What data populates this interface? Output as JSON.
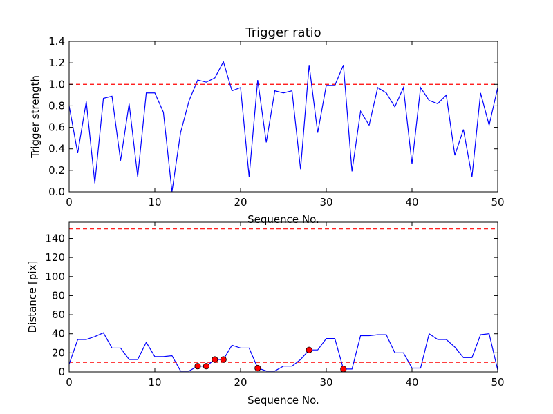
{
  "chart_data": [
    {
      "type": "line",
      "title": "Trigger ratio",
      "xlabel": "Sequence No.",
      "ylabel": "Trigger strength",
      "xlim": [
        0,
        50
      ],
      "ylim": [
        0,
        1.4
      ],
      "xticks": [
        0,
        10,
        20,
        30,
        40,
        50
      ],
      "yticks": [
        0.0,
        0.2,
        0.4,
        0.6,
        0.8,
        1.0,
        1.2,
        1.4
      ],
      "ytick_labels": [
        "0.0",
        "0.2",
        "0.4",
        "0.6",
        "0.8",
        "1.0",
        "1.2",
        "1.4"
      ],
      "grid": false,
      "series": [
        {
          "color": "#0000ff",
          "x": [
            0,
            1,
            2,
            3,
            4,
            5,
            6,
            7,
            8,
            9,
            10,
            11,
            12,
            13,
            14,
            15,
            16,
            17,
            18,
            19,
            20,
            21,
            22,
            23,
            24,
            25,
            26,
            27,
            28,
            29,
            30,
            31,
            32,
            33,
            34,
            35,
            36,
            37,
            38,
            39,
            40,
            41,
            42,
            43,
            44,
            45,
            46,
            47,
            48,
            49,
            50
          ],
          "y": [
            0.8,
            0.36,
            0.84,
            0.08,
            0.87,
            0.89,
            0.29,
            0.82,
            0.14,
            0.92,
            0.92,
            0.74,
            0.0,
            0.55,
            0.85,
            1.04,
            1.02,
            1.06,
            1.21,
            0.94,
            0.97,
            0.14,
            1.04,
            0.46,
            0.94,
            0.92,
            0.94,
            0.21,
            1.18,
            0.55,
            0.99,
            0.99,
            1.18,
            0.19,
            0.75,
            0.62,
            0.97,
            0.92,
            0.79,
            0.97,
            0.26,
            0.97,
            0.85,
            0.82,
            0.9,
            0.34,
            0.58,
            0.14,
            0.92,
            0.62,
            0.97
          ]
        }
      ],
      "hlines": [
        {
          "y": 1.0,
          "color": "#ff0000",
          "style": "dashed"
        }
      ]
    },
    {
      "type": "line",
      "xlabel": "Sequence No.",
      "ylabel": "Distance [pix]",
      "xlim": [
        0,
        50
      ],
      "ylim": [
        0,
        157
      ],
      "xticks": [
        0,
        10,
        20,
        30,
        40,
        50
      ],
      "yticks": [
        0,
        20,
        40,
        60,
        80,
        100,
        120,
        140
      ],
      "ytick_labels": [
        "0",
        "20",
        "40",
        "60",
        "80",
        "100",
        "120",
        "140"
      ],
      "grid": false,
      "series": [
        {
          "color": "#0000ff",
          "x": [
            0,
            1,
            2,
            3,
            4,
            5,
            6,
            7,
            8,
            9,
            10,
            11,
            12,
            13,
            14,
            15,
            16,
            17,
            18,
            19,
            20,
            21,
            22,
            23,
            24,
            25,
            26,
            27,
            28,
            29,
            30,
            31,
            32,
            33,
            34,
            35,
            36,
            37,
            38,
            39,
            40,
            41,
            42,
            43,
            44,
            45,
            46,
            47,
            48,
            49,
            50
          ],
          "y": [
            8,
            34,
            34,
            37,
            41,
            25,
            25,
            13,
            13,
            31,
            16,
            16,
            17,
            1,
            1,
            6,
            6,
            13,
            13,
            28,
            25,
            25,
            4,
            1,
            1,
            6,
            6,
            13,
            23,
            23,
            35,
            35,
            3,
            3,
            38,
            38,
            39,
            39,
            20,
            20,
            4,
            4,
            40,
            34,
            34,
            26,
            15,
            15,
            39,
            40,
            2
          ]
        }
      ],
      "markers": {
        "color": "#ff0000",
        "x": [
          15,
          16,
          17,
          18,
          22,
          28,
          32
        ],
        "y": [
          6,
          6,
          13,
          13,
          4,
          23,
          3
        ]
      },
      "hlines": [
        {
          "y": 150,
          "color": "#ff0000",
          "style": "dashed"
        },
        {
          "y": 10,
          "color": "#ff0000",
          "style": "dashed"
        }
      ]
    }
  ]
}
